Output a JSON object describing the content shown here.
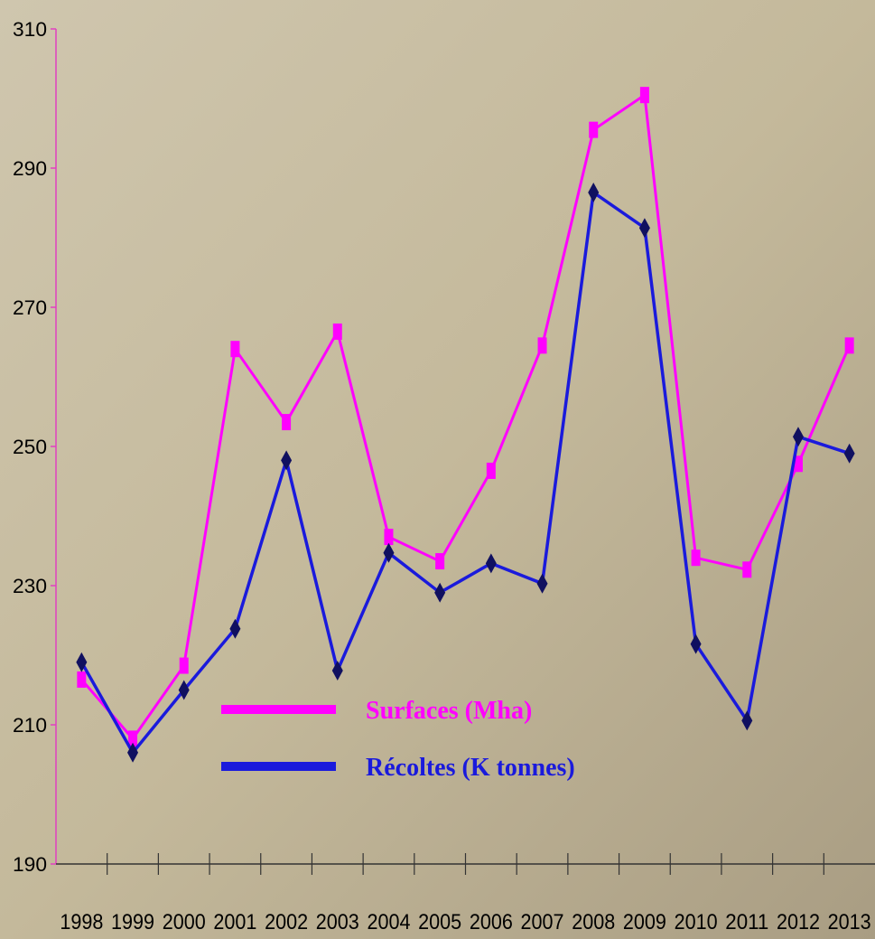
{
  "chart_data": {
    "type": "line",
    "categories": [
      "1998",
      "1999",
      "2000",
      "2001",
      "2002",
      "2003",
      "2004",
      "2005",
      "2006",
      "2007",
      "2008",
      "2009",
      "2010",
      "2011",
      "2012",
      "2013"
    ],
    "series": [
      {
        "name": "Surfaces (Mha)",
        "color": "#ff00ff",
        "values": [
          216.5,
          208,
          218.5,
          264,
          253.5,
          266.5,
          237,
          233.5,
          246.5,
          264.5,
          295.5,
          300.5,
          234,
          232.3,
          247.5,
          264.5
        ]
      },
      {
        "name": "Récoltes (K tonnes)",
        "color": "#1a1adc",
        "values": [
          219,
          206,
          215,
          223.8,
          248,
          217.8,
          234.7,
          229,
          233.2,
          230.3,
          286.5,
          281.4,
          221.6,
          210.6,
          251.4,
          249
        ]
      }
    ],
    "ylim": [
      190,
      310
    ],
    "yticks": [
      190,
      210,
      230,
      250,
      270,
      290,
      310
    ]
  }
}
